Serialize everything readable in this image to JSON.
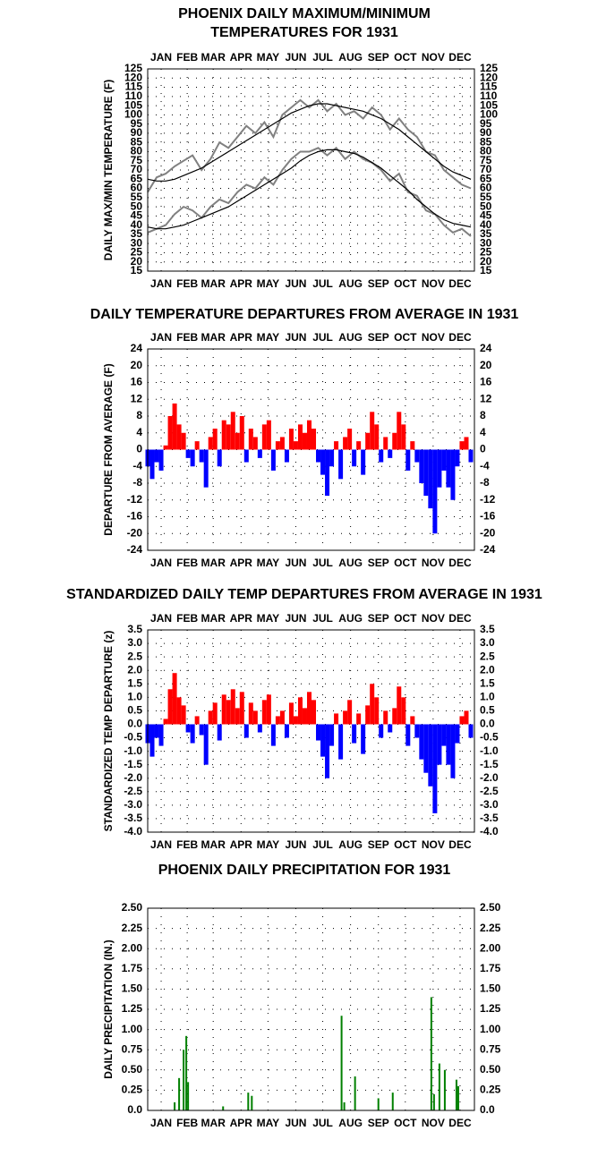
{
  "chart_data": [
    {
      "type": "line",
      "title": [
        "PHOENIX DAILY MAXIMUM/MINIMUM",
        "TEMPERATURES FOR 1931"
      ],
      "y_label": "DAILY MAX/MIN TEMPERATURE (F)",
      "x_labels_top": true,
      "xlim": [
        1,
        365
      ],
      "xticks": [
        {
          "value": 16,
          "label": "JAN"
        },
        {
          "value": 45,
          "label": "FEB"
        },
        {
          "value": 74,
          "label": "MAR"
        },
        {
          "value": 105,
          "label": "APR"
        },
        {
          "value": 135,
          "label": "MAY"
        },
        {
          "value": 166,
          "label": "JUN"
        },
        {
          "value": 196,
          "label": "JUL"
        },
        {
          "value": 227,
          "label": "AUG"
        },
        {
          "value": 258,
          "label": "SEP"
        },
        {
          "value": 288,
          "label": "OCT"
        },
        {
          "value": 319,
          "label": "NOV"
        },
        {
          "value": 349,
          "label": "DEC"
        }
      ],
      "ylim": [
        15,
        125
      ],
      "yticks": [
        15,
        20,
        25,
        30,
        35,
        40,
        45,
        50,
        55,
        60,
        65,
        70,
        75,
        80,
        85,
        90,
        95,
        100,
        105,
        110,
        115,
        120,
        125
      ],
      "grid": true,
      "x": [
        1,
        11,
        21,
        31,
        41,
        51,
        61,
        71,
        81,
        91,
        101,
        111,
        121,
        131,
        141,
        151,
        161,
        171,
        181,
        191,
        201,
        211,
        221,
        231,
        241,
        251,
        261,
        271,
        281,
        291,
        301,
        311,
        321,
        331,
        341,
        351,
        361
      ],
      "series": [
        {
          "color": "#808080",
          "values": [
            58,
            66,
            68,
            72,
            75,
            78,
            70,
            76,
            85,
            82,
            88,
            94,
            90,
            96,
            88,
            100,
            104,
            108,
            104,
            108,
            102,
            106,
            100,
            102,
            98,
            104,
            100,
            92,
            98,
            92,
            88,
            80,
            78,
            70,
            66,
            62,
            60
          ]
        },
        {
          "color": "#808080",
          "values": [
            36,
            38,
            40,
            46,
            50,
            48,
            44,
            50,
            54,
            52,
            58,
            62,
            60,
            66,
            62,
            70,
            76,
            80,
            80,
            82,
            78,
            82,
            76,
            80,
            76,
            74,
            70,
            64,
            68,
            58,
            56,
            48,
            46,
            40,
            36,
            38,
            34
          ]
        },
        {
          "color": "#000000",
          "values": [
            65,
            64,
            64,
            65,
            67,
            69,
            71,
            74,
            77,
            80,
            83,
            86,
            89,
            92,
            95,
            98,
            101,
            103,
            105,
            106,
            106,
            105,
            104,
            103,
            102,
            100,
            98,
            95,
            92,
            88,
            84,
            80,
            76,
            72,
            69,
            67,
            65
          ]
        },
        {
          "color": "#000000",
          "values": [
            39,
            38,
            38,
            39,
            40,
            42,
            44,
            46,
            48,
            50,
            53,
            56,
            59,
            62,
            65,
            68,
            71,
            75,
            78,
            80,
            81,
            81,
            80,
            79,
            77,
            74,
            71,
            67,
            63,
            59,
            54,
            50,
            46,
            43,
            41,
            40,
            39
          ]
        }
      ]
    },
    {
      "type": "bar",
      "title": [
        "DAILY TEMPERATURE DEPARTURES FROM AVERAGE IN 1931"
      ],
      "y_label": "DEPARTURE FROM AVERAGE (F)",
      "x_labels_top": true,
      "xlim": [
        1,
        365
      ],
      "xticks": [
        {
          "value": 16,
          "label": "JAN"
        },
        {
          "value": 45,
          "label": "FEB"
        },
        {
          "value": 74,
          "label": "MAR"
        },
        {
          "value": 105,
          "label": "APR"
        },
        {
          "value": 135,
          "label": "MAY"
        },
        {
          "value": 166,
          "label": "JUN"
        },
        {
          "value": 196,
          "label": "JUL"
        },
        {
          "value": 227,
          "label": "AUG"
        },
        {
          "value": 258,
          "label": "SEP"
        },
        {
          "value": 288,
          "label": "OCT"
        },
        {
          "value": 319,
          "label": "NOV"
        },
        {
          "value": 349,
          "label": "DEC"
        }
      ],
      "ylim": [
        -24,
        24
      ],
      "yticks": [
        -24,
        -20,
        -16,
        -12,
        -8,
        -4,
        0,
        4,
        8,
        12,
        16,
        20,
        24
      ],
      "grid": true,
      "colors": {
        "positive": "#ff0000",
        "negative": "#0000ff"
      },
      "x": [
        1,
        6,
        11,
        16,
        21,
        26,
        31,
        36,
        41,
        46,
        51,
        56,
        61,
        66,
        71,
        76,
        81,
        86,
        91,
        96,
        101,
        106,
        111,
        116,
        121,
        126,
        131,
        136,
        141,
        146,
        151,
        156,
        161,
        166,
        171,
        176,
        181,
        186,
        191,
        196,
        201,
        206,
        211,
        216,
        221,
        226,
        231,
        236,
        241,
        246,
        251,
        256,
        261,
        266,
        271,
        276,
        281,
        286,
        291,
        296,
        301,
        306,
        311,
        316,
        321,
        326,
        331,
        336,
        341,
        346,
        351,
        356,
        361
      ],
      "values": [
        -4,
        -7,
        -3,
        -5,
        1,
        8,
        11,
        6,
        4,
        -2,
        -4,
        2,
        -3,
        -9,
        3,
        5,
        -4,
        7,
        6,
        9,
        4,
        8,
        -3,
        5,
        3,
        -2,
        6,
        7,
        -5,
        2,
        3,
        -3,
        5,
        2,
        6,
        4,
        7,
        5,
        -3,
        -6,
        -11,
        -4,
        2,
        -7,
        3,
        5,
        -4,
        2,
        -6,
        4,
        9,
        6,
        -3,
        3,
        -2,
        4,
        9,
        6,
        -5,
        2,
        -3,
        -8,
        -11,
        -14,
        -20,
        -9,
        -5,
        -9,
        -12,
        -4,
        2,
        3,
        -3
      ]
    },
    {
      "type": "bar",
      "title": [
        "STANDARDIZED DAILY TEMP DEPARTURES FROM AVERAGE IN 1931"
      ],
      "y_label": "STANDARDIZED TEMP DEPARTURE (z)",
      "x_labels_top": true,
      "xlim": [
        1,
        365
      ],
      "xticks": [
        {
          "value": 16,
          "label": "JAN"
        },
        {
          "value": 45,
          "label": "FEB"
        },
        {
          "value": 74,
          "label": "MAR"
        },
        {
          "value": 105,
          "label": "APR"
        },
        {
          "value": 135,
          "label": "MAY"
        },
        {
          "value": 166,
          "label": "JUN"
        },
        {
          "value": 196,
          "label": "JUL"
        },
        {
          "value": 227,
          "label": "AUG"
        },
        {
          "value": 258,
          "label": "SEP"
        },
        {
          "value": 288,
          "label": "OCT"
        },
        {
          "value": 319,
          "label": "NOV"
        },
        {
          "value": 349,
          "label": "DEC"
        }
      ],
      "ylim": [
        -4,
        3.5
      ],
      "yticks": [
        {
          "value": -4,
          "label": "-4.0"
        },
        -3.5,
        {
          "value": -3,
          "label": "-3.0"
        },
        -2.5,
        {
          "value": -2,
          "label": "-2.0"
        },
        -1.5,
        {
          "value": -1,
          "label": "-1.0"
        },
        -0.5,
        {
          "value": 0,
          "label": "0.0"
        },
        0.5,
        {
          "value": 1,
          "label": "1.0"
        },
        1.5,
        {
          "value": 2,
          "label": "2.0"
        },
        2.5,
        {
          "value": 3,
          "label": "3.0"
        },
        3.5
      ],
      "grid": true,
      "colors": {
        "positive": "#ff0000",
        "negative": "#0000ff"
      },
      "x": [
        1,
        6,
        11,
        16,
        21,
        26,
        31,
        36,
        41,
        46,
        51,
        56,
        61,
        66,
        71,
        76,
        81,
        86,
        91,
        96,
        101,
        106,
        111,
        116,
        121,
        126,
        131,
        136,
        141,
        146,
        151,
        156,
        161,
        166,
        171,
        176,
        181,
        186,
        191,
        196,
        201,
        206,
        211,
        216,
        221,
        226,
        231,
        236,
        241,
        246,
        251,
        256,
        261,
        266,
        271,
        276,
        281,
        286,
        291,
        296,
        301,
        306,
        311,
        316,
        321,
        326,
        331,
        336,
        341,
        346,
        351,
        356,
        361
      ],
      "values": [
        -0.7,
        -1.2,
        -0.5,
        -0.8,
        0.2,
        1.3,
        1.9,
        1.0,
        0.7,
        -0.3,
        -0.7,
        0.3,
        -0.4,
        -1.5,
        0.5,
        0.8,
        -0.6,
        1.1,
        0.9,
        1.3,
        0.6,
        1.2,
        -0.5,
        0.8,
        0.5,
        -0.3,
        0.9,
        1.1,
        -0.8,
        0.3,
        0.5,
        -0.5,
        0.8,
        0.3,
        1.0,
        0.6,
        1.2,
        0.9,
        -0.6,
        -1.2,
        -2.0,
        -0.8,
        0.4,
        -1.3,
        0.5,
        0.9,
        -0.7,
        0.4,
        -1.1,
        0.7,
        1.5,
        1.0,
        -0.5,
        0.5,
        -0.3,
        0.6,
        1.4,
        1.0,
        -0.8,
        0.3,
        -0.5,
        -1.3,
        -1.8,
        -2.3,
        -3.3,
        -1.5,
        -0.8,
        -1.5,
        -2.0,
        -0.7,
        0.3,
        0.5,
        -0.5
      ]
    },
    {
      "type": "bar",
      "title": [
        "PHOENIX DAILY PRECIPITATION FOR 1931"
      ],
      "y_label": "DAILY PRECIPITATION (IN.)",
      "x_labels_top": false,
      "xlim": [
        1,
        365
      ],
      "xticks": [
        {
          "value": 16,
          "label": "JAN"
        },
        {
          "value": 45,
          "label": "FEB"
        },
        {
          "value": 74,
          "label": "MAR"
        },
        {
          "value": 105,
          "label": "APR"
        },
        {
          "value": 135,
          "label": "MAY"
        },
        {
          "value": 166,
          "label": "JUN"
        },
        {
          "value": 196,
          "label": "JUL"
        },
        {
          "value": 227,
          "label": "AUG"
        },
        {
          "value": 258,
          "label": "SEP"
        },
        {
          "value": 288,
          "label": "OCT"
        },
        {
          "value": 319,
          "label": "NOV"
        },
        {
          "value": 349,
          "label": "DEC"
        }
      ],
      "ylim": [
        0,
        2.5
      ],
      "yticks": [
        {
          "value": 0,
          "label": "0.0"
        },
        0.25,
        {
          "value": 0.5,
          "label": "0.50"
        },
        0.75,
        {
          "value": 1,
          "label": "1.00"
        },
        1.25,
        {
          "value": 1.5,
          "label": "1.50"
        },
        1.75,
        {
          "value": 2,
          "label": "2.00"
        },
        2.25,
        {
          "value": 2.5,
          "label": "2.50"
        }
      ],
      "grid": true,
      "colors": {
        "positive": "#008000",
        "negative": "#008000"
      },
      "x": [
        31,
        36,
        41,
        44,
        46,
        85,
        113,
        117,
        217,
        220,
        232,
        258,
        274,
        317,
        320,
        326,
        332,
        345,
        347
      ],
      "values": [
        0.1,
        0.4,
        0.75,
        0.92,
        0.35,
        0.05,
        0.22,
        0.18,
        1.17,
        0.1,
        0.42,
        0.15,
        0.22,
        1.4,
        0.2,
        0.58,
        0.5,
        0.38,
        0.3
      ]
    }
  ]
}
